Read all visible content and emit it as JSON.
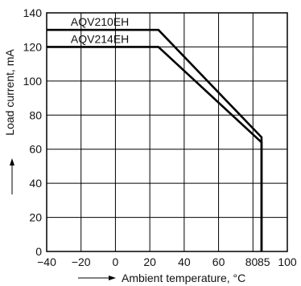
{
  "chart_data": {
    "type": "line",
    "xlabel": "Ambient temperature, °C",
    "ylabel": "Load current, mA",
    "xlim": [
      -40,
      100
    ],
    "ylim": [
      0,
      140
    ],
    "x_tick_labels": [
      "−40",
      "−20",
      "0",
      "20",
      "40",
      "60",
      "80",
      "85",
      "100"
    ],
    "x_tick_values": [
      -40,
      -20,
      0,
      20,
      40,
      60,
      80,
      85,
      100
    ],
    "y_tick_labels": [
      "0",
      "20",
      "40",
      "60",
      "80",
      "100",
      "120",
      "140"
    ],
    "y_tick_values": [
      0,
      20,
      40,
      60,
      80,
      100,
      120,
      140
    ],
    "grid": true,
    "series": [
      {
        "name": "AQV210EH",
        "x": [
          -40,
          25,
          85,
          85
        ],
        "y": [
          130,
          130,
          67,
          0
        ]
      },
      {
        "name": "AQV214EH",
        "x": [
          -40,
          25,
          85,
          85
        ],
        "y": [
          120,
          120,
          64,
          0
        ]
      }
    ]
  }
}
